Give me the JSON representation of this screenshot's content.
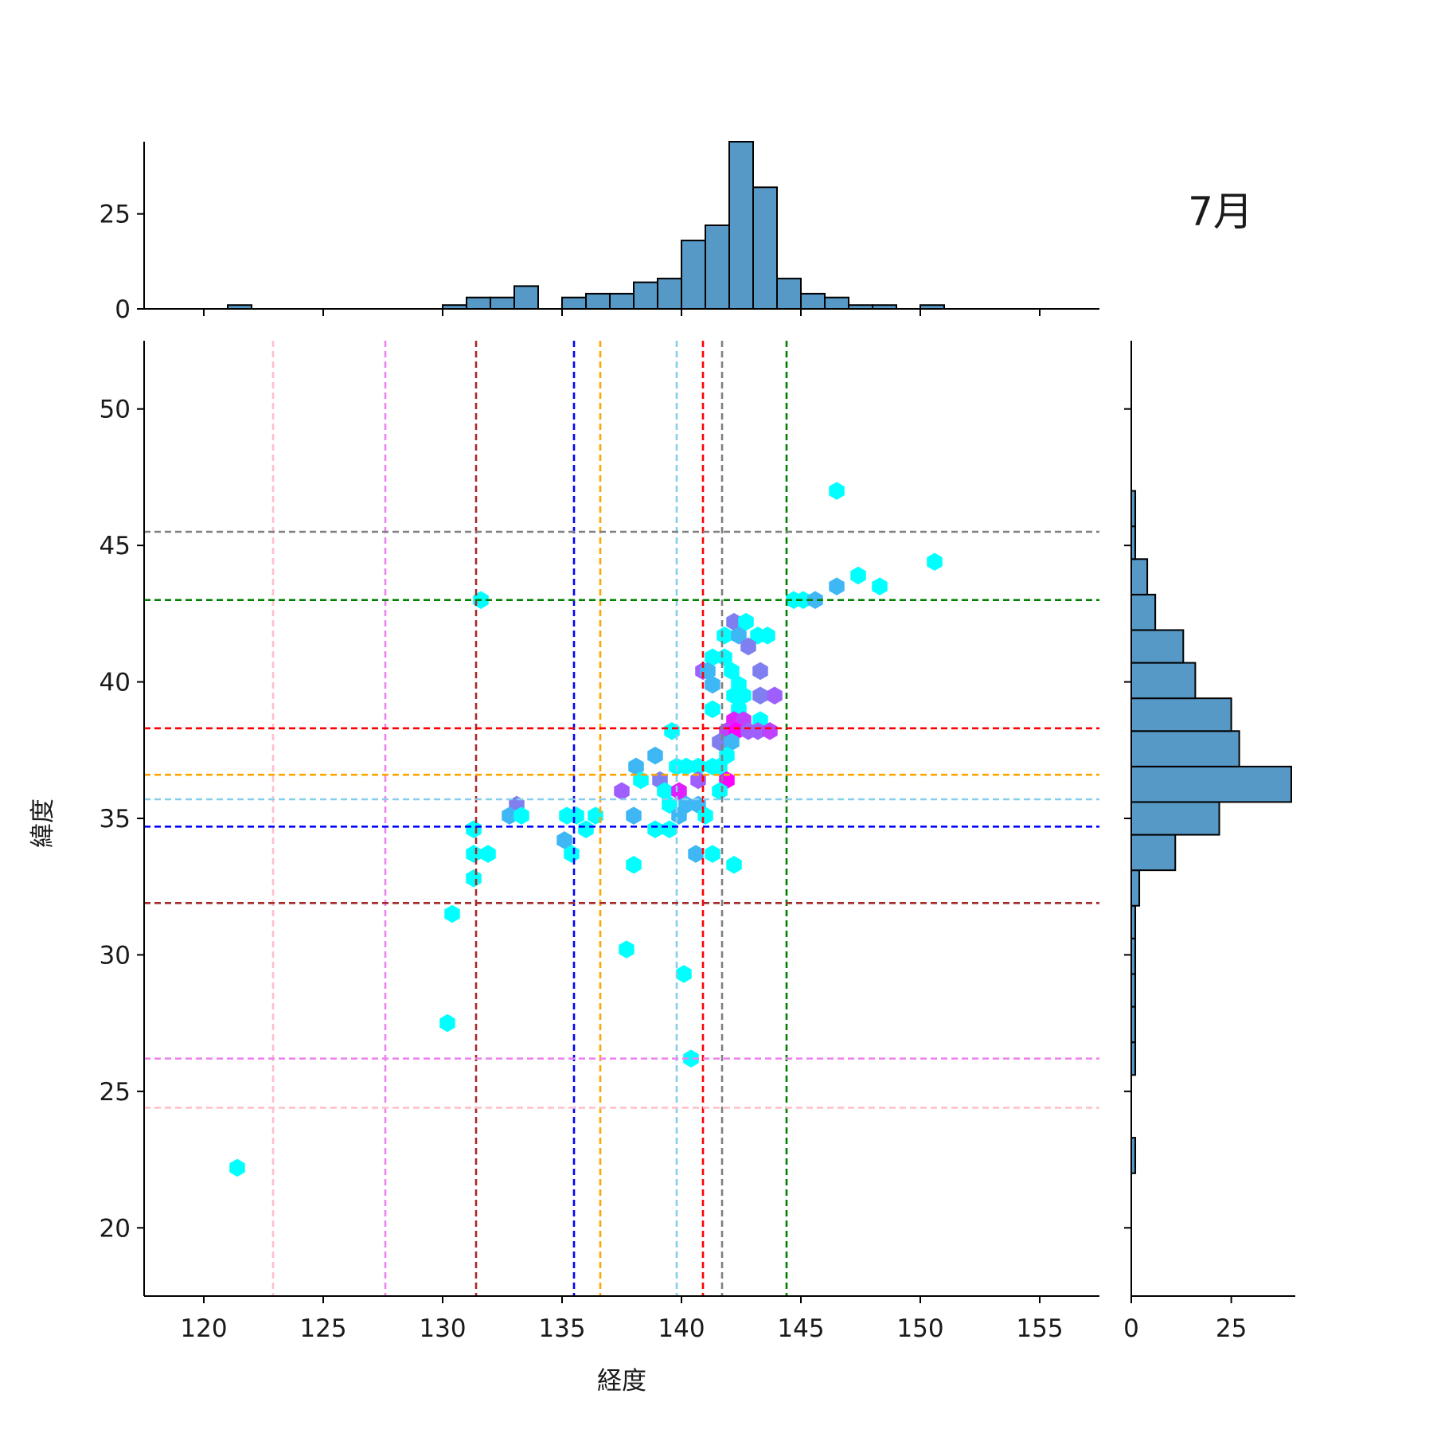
{
  "chart_data": {
    "type": "hexbin",
    "month_label": "7月",
    "xlabel": "経度",
    "ylabel": "緯度",
    "xlim": [
      117.5,
      157.5
    ],
    "ylim": [
      17.5,
      52.5
    ],
    "x_ticks": [
      120,
      125,
      130,
      135,
      140,
      145,
      150,
      155
    ],
    "y_ticks": [
      20,
      25,
      30,
      35,
      40,
      45,
      50
    ],
    "top_hist": {
      "ticks": [
        0,
        25
      ],
      "ylim": [
        0,
        44
      ],
      "bin_edges": [
        117,
        118,
        119,
        120,
        121,
        122,
        123,
        124,
        125,
        126,
        127,
        128,
        129,
        130,
        131,
        132,
        133,
        134,
        135,
        136,
        137,
        138,
        139,
        140,
        141,
        142,
        143,
        144,
        145,
        146,
        147,
        148,
        149,
        150,
        151,
        152,
        153,
        154,
        155,
        156,
        157
      ],
      "counts": [
        0,
        0,
        0,
        0,
        1,
        0,
        0,
        0,
        0,
        0,
        0,
        0,
        0,
        1,
        3,
        3,
        6,
        0,
        3,
        4,
        4,
        7,
        8,
        18,
        22,
        44,
        32,
        8,
        4,
        3,
        1,
        1,
        0,
        1,
        0,
        0,
        0,
        0,
        0,
        0
      ],
      "bar_color": "#5698c6"
    },
    "right_hist": {
      "ticks": [
        0,
        25
      ],
      "xlim": [
        0,
        41
      ],
      "bins": [
        {
          "y0": 22.0,
          "y1": 23.3,
          "count": 1
        },
        {
          "y0": 25.6,
          "y1": 26.8,
          "count": 1
        },
        {
          "y0": 26.8,
          "y1": 28.1,
          "count": 1
        },
        {
          "y0": 28.1,
          "y1": 29.3,
          "count": 1
        },
        {
          "y0": 29.3,
          "y1": 30.6,
          "count": 1
        },
        {
          "y0": 30.6,
          "y1": 31.8,
          "count": 1
        },
        {
          "y0": 31.8,
          "y1": 33.1,
          "count": 2
        },
        {
          "y0": 33.1,
          "y1": 34.4,
          "count": 11
        },
        {
          "y0": 34.4,
          "y1": 35.6,
          "count": 22
        },
        {
          "y0": 35.6,
          "y1": 36.9,
          "count": 40
        },
        {
          "y0": 36.9,
          "y1": 38.2,
          "count": 27
        },
        {
          "y0": 38.2,
          "y1": 39.4,
          "count": 25
        },
        {
          "y0": 39.4,
          "y1": 40.7,
          "count": 16
        },
        {
          "y0": 40.7,
          "y1": 41.9,
          "count": 13
        },
        {
          "y0": 41.9,
          "y1": 43.2,
          "count": 6
        },
        {
          "y0": 43.2,
          "y1": 44.5,
          "count": 4
        },
        {
          "y0": 44.5,
          "y1": 45.7,
          "count": 1
        },
        {
          "y0": 45.7,
          "y1": 47.0,
          "count": 1
        }
      ],
      "bar_color": "#5698c6"
    },
    "reference_lines": {
      "vertical": [
        {
          "x": 122.9,
          "color": "#ffc0cb"
        },
        {
          "x": 127.6,
          "color": "#ee82ee"
        },
        {
          "x": 131.4,
          "color": "#a52a2a"
        },
        {
          "x": 135.5,
          "color": "#0000ff"
        },
        {
          "x": 136.6,
          "color": "#ffa500"
        },
        {
          "x": 139.8,
          "color": "#87ceeb"
        },
        {
          "x": 140.9,
          "color": "#ff0000"
        },
        {
          "x": 141.7,
          "color": "#808080"
        },
        {
          "x": 144.4,
          "color": "#008000"
        }
      ],
      "horizontal": [
        {
          "y": 45.5,
          "color": "#808080"
        },
        {
          "y": 43.0,
          "color": "#008000"
        },
        {
          "y": 38.3,
          "color": "#ff0000"
        },
        {
          "y": 36.6,
          "color": "#ffa500"
        },
        {
          "y": 35.7,
          "color": "#87ceeb"
        },
        {
          "y": 34.7,
          "color": "#0000ff"
        },
        {
          "y": 31.9,
          "color": "#a52a2a"
        },
        {
          "y": 26.2,
          "color": "#ee82ee"
        },
        {
          "y": 24.4,
          "color": "#ffc0cb"
        }
      ]
    },
    "hexbins": [
      {
        "x": 146.5,
        "y": 47.0,
        "color": "#00ffff"
      },
      {
        "x": 150.6,
        "y": 44.4,
        "color": "#00ffff"
      },
      {
        "x": 147.4,
        "y": 43.9,
        "color": "#00ffff"
      },
      {
        "x": 146.5,
        "y": 43.5,
        "color": "#3fb7f5"
      },
      {
        "x": 148.3,
        "y": 43.5,
        "color": "#00ffff"
      },
      {
        "x": 131.6,
        "y": 43.0,
        "color": "#00ffff"
      },
      {
        "x": 144.7,
        "y": 43.0,
        "color": "#00ffff"
      },
      {
        "x": 145.1,
        "y": 43.0,
        "color": "#00ffff"
      },
      {
        "x": 145.6,
        "y": 43.0,
        "color": "#3fb7f5"
      },
      {
        "x": 142.2,
        "y": 42.2,
        "color": "#7f7ff0"
      },
      {
        "x": 142.7,
        "y": 42.2,
        "color": "#00ffff"
      },
      {
        "x": 141.8,
        "y": 41.7,
        "color": "#00ffff"
      },
      {
        "x": 142.4,
        "y": 41.7,
        "color": "#3fb7f5"
      },
      {
        "x": 143.2,
        "y": 41.7,
        "color": "#00ffff"
      },
      {
        "x": 143.6,
        "y": 41.7,
        "color": "#00ffff"
      },
      {
        "x": 142.8,
        "y": 41.3,
        "color": "#7f7ff0"
      },
      {
        "x": 141.3,
        "y": 40.9,
        "color": "#00ffff"
      },
      {
        "x": 141.8,
        "y": 40.9,
        "color": "#00ffff"
      },
      {
        "x": 140.9,
        "y": 40.4,
        "color": "#9f5fff"
      },
      {
        "x": 141.1,
        "y": 40.4,
        "color": "#3fb7f5"
      },
      {
        "x": 142.1,
        "y": 40.4,
        "color": "#00ffff"
      },
      {
        "x": 143.3,
        "y": 40.4,
        "color": "#7f7ff0"
      },
      {
        "x": 141.3,
        "y": 39.9,
        "color": "#3fb7f5"
      },
      {
        "x": 142.4,
        "y": 39.9,
        "color": "#00ffff"
      },
      {
        "x": 142.2,
        "y": 39.5,
        "color": "#00ffff"
      },
      {
        "x": 142.6,
        "y": 39.5,
        "color": "#00ffff"
      },
      {
        "x": 143.3,
        "y": 39.5,
        "color": "#7f7ff0"
      },
      {
        "x": 143.9,
        "y": 39.5,
        "color": "#9f5fff"
      },
      {
        "x": 141.3,
        "y": 39.0,
        "color": "#00ffff"
      },
      {
        "x": 142.4,
        "y": 39.0,
        "color": "#00ffff"
      },
      {
        "x": 142.2,
        "y": 38.6,
        "color": "#df20ff"
      },
      {
        "x": 142.6,
        "y": 38.6,
        "color": "#bf40ff"
      },
      {
        "x": 143.3,
        "y": 38.6,
        "color": "#00ffff"
      },
      {
        "x": 139.6,
        "y": 38.2,
        "color": "#00ffff"
      },
      {
        "x": 141.9,
        "y": 38.2,
        "color": "#bf40ff"
      },
      {
        "x": 142.3,
        "y": 38.2,
        "color": "#ff00ff"
      },
      {
        "x": 142.8,
        "y": 38.2,
        "color": "#9f5fff"
      },
      {
        "x": 143.2,
        "y": 38.2,
        "color": "#9f5fff"
      },
      {
        "x": 143.7,
        "y": 38.2,
        "color": "#bf40ff"
      },
      {
        "x": 141.6,
        "y": 37.8,
        "color": "#7f7ff0"
      },
      {
        "x": 142.1,
        "y": 37.8,
        "color": "#3fb7f5"
      },
      {
        "x": 138.9,
        "y": 37.3,
        "color": "#3fb7f5"
      },
      {
        "x": 141.9,
        "y": 37.3,
        "color": "#00ffff"
      },
      {
        "x": 138.1,
        "y": 36.9,
        "color": "#3fb7f5"
      },
      {
        "x": 139.8,
        "y": 36.9,
        "color": "#00ffff"
      },
      {
        "x": 140.2,
        "y": 36.9,
        "color": "#00ffff"
      },
      {
        "x": 140.7,
        "y": 36.9,
        "color": "#00ffff"
      },
      {
        "x": 141.3,
        "y": 36.9,
        "color": "#00ffff"
      },
      {
        "x": 141.6,
        "y": 36.9,
        "color": "#00ffff"
      },
      {
        "x": 138.3,
        "y": 36.4,
        "color": "#00ffff"
      },
      {
        "x": 139.1,
        "y": 36.4,
        "color": "#7f7ff0"
      },
      {
        "x": 140.7,
        "y": 36.4,
        "color": "#9f5fff"
      },
      {
        "x": 141.9,
        "y": 36.4,
        "color": "#ff00ff"
      },
      {
        "x": 137.5,
        "y": 36.0,
        "color": "#9f5fff"
      },
      {
        "x": 139.3,
        "y": 36.0,
        "color": "#00ffff"
      },
      {
        "x": 139.9,
        "y": 36.0,
        "color": "#df20ff"
      },
      {
        "x": 141.6,
        "y": 36.0,
        "color": "#00ffff"
      },
      {
        "x": 133.1,
        "y": 35.5,
        "color": "#7f7ff0"
      },
      {
        "x": 139.5,
        "y": 35.5,
        "color": "#00ffff"
      },
      {
        "x": 140.2,
        "y": 35.5,
        "color": "#3fb7f5"
      },
      {
        "x": 140.7,
        "y": 35.5,
        "color": "#3fb7f5"
      },
      {
        "x": 132.8,
        "y": 35.1,
        "color": "#3fb7f5"
      },
      {
        "x": 133.3,
        "y": 35.1,
        "color": "#00ffff"
      },
      {
        "x": 135.2,
        "y": 35.1,
        "color": "#00ffff"
      },
      {
        "x": 135.6,
        "y": 35.1,
        "color": "#00ffff"
      },
      {
        "x": 136.4,
        "y": 35.1,
        "color": "#00ffff"
      },
      {
        "x": 138.0,
        "y": 35.1,
        "color": "#3fb7f5"
      },
      {
        "x": 139.9,
        "y": 35.1,
        "color": "#3fb7f5"
      },
      {
        "x": 141.0,
        "y": 35.1,
        "color": "#00ffff"
      },
      {
        "x": 131.3,
        "y": 34.6,
        "color": "#00ffff"
      },
      {
        "x": 136.0,
        "y": 34.6,
        "color": "#00ffff"
      },
      {
        "x": 138.9,
        "y": 34.6,
        "color": "#00ffff"
      },
      {
        "x": 139.5,
        "y": 34.6,
        "color": "#00ffff"
      },
      {
        "x": 135.1,
        "y": 34.2,
        "color": "#3fb7f5"
      },
      {
        "x": 131.3,
        "y": 33.7,
        "color": "#00ffff"
      },
      {
        "x": 131.9,
        "y": 33.7,
        "color": "#00ffff"
      },
      {
        "x": 135.4,
        "y": 33.7,
        "color": "#00ffff"
      },
      {
        "x": 140.6,
        "y": 33.7,
        "color": "#3fb7f5"
      },
      {
        "x": 141.3,
        "y": 33.7,
        "color": "#00ffff"
      },
      {
        "x": 138.0,
        "y": 33.3,
        "color": "#00ffff"
      },
      {
        "x": 142.2,
        "y": 33.3,
        "color": "#00ffff"
      },
      {
        "x": 131.3,
        "y": 32.8,
        "color": "#00ffff"
      },
      {
        "x": 130.4,
        "y": 31.5,
        "color": "#00ffff"
      },
      {
        "x": 137.7,
        "y": 30.2,
        "color": "#00ffff"
      },
      {
        "x": 140.1,
        "y": 29.3,
        "color": "#00ffff"
      },
      {
        "x": 130.2,
        "y": 27.5,
        "color": "#00ffff"
      },
      {
        "x": 140.4,
        "y": 26.2,
        "color": "#00ffff"
      },
      {
        "x": 121.4,
        "y": 22.2,
        "color": "#00ffff"
      }
    ]
  }
}
